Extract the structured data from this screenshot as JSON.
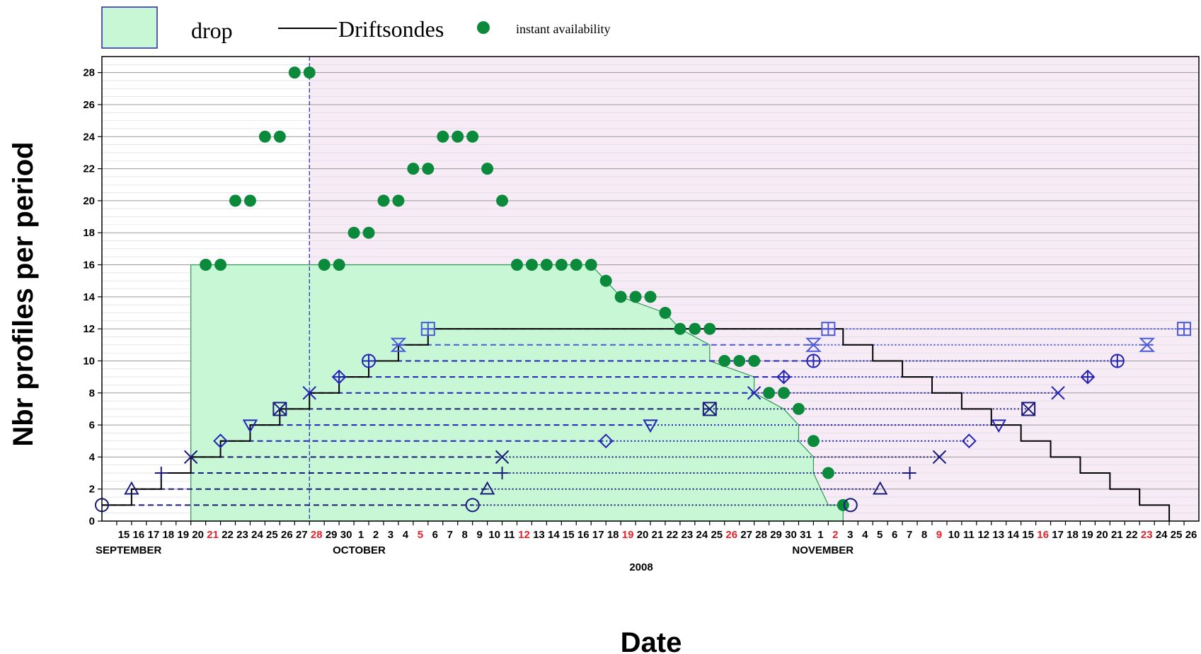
{
  "legend": {
    "drop": "drop",
    "driftsondes": "Driftsondes",
    "instant": "instant availability"
  },
  "axes": {
    "ylabel": "Nbr profiles per period",
    "xlabel": "Date",
    "year": "2008",
    "months": [
      "SEPTEMBER",
      "OCTOBER",
      "NOVEMBER"
    ]
  },
  "colors": {
    "drop_fill": "#c8f7d6",
    "drop_edge": "#2e9a5a",
    "dots": "#0b8a3c",
    "driftsonde": "#000000",
    "navy": "#1a1a7a",
    "blue": "#2323b5",
    "light_blue": "#4a5ad8",
    "weekend": "#e8202a",
    "shade": "#f7ecf6"
  },
  "chart_data": {
    "type": "line",
    "xlabel": "Date",
    "ylabel": "Nbr profiles per period",
    "ylim": [
      0,
      29
    ],
    "yticks": [
      0,
      2,
      4,
      6,
      8,
      10,
      12,
      14,
      16,
      18,
      20,
      22,
      24,
      26,
      28
    ],
    "xlim": [
      "2008-09-14",
      "2008-11-27"
    ],
    "x_ticks": [
      {
        "date": "2008-09-15",
        "label": "15",
        "red": false
      },
      {
        "date": "2008-09-16",
        "label": "16",
        "red": false
      },
      {
        "date": "2008-09-17",
        "label": "17",
        "red": false
      },
      {
        "date": "2008-09-18",
        "label": "18",
        "red": false
      },
      {
        "date": "2008-09-19",
        "label": "19",
        "red": false
      },
      {
        "date": "2008-09-20",
        "label": "20",
        "red": false
      },
      {
        "date": "2008-09-21",
        "label": "21",
        "red": true
      },
      {
        "date": "2008-09-22",
        "label": "22",
        "red": false
      },
      {
        "date": "2008-09-23",
        "label": "23",
        "red": false
      },
      {
        "date": "2008-09-24",
        "label": "24",
        "red": false
      },
      {
        "date": "2008-09-25",
        "label": "25",
        "red": false
      },
      {
        "date": "2008-09-26",
        "label": "26",
        "red": false
      },
      {
        "date": "2008-09-27",
        "label": "27",
        "red": false
      },
      {
        "date": "2008-09-28",
        "label": "28",
        "red": true
      },
      {
        "date": "2008-09-29",
        "label": "29",
        "red": false
      },
      {
        "date": "2008-09-30",
        "label": "30",
        "red": false
      },
      {
        "date": "2008-10-01",
        "label": "1",
        "red": false
      },
      {
        "date": "2008-10-02",
        "label": "2",
        "red": false
      },
      {
        "date": "2008-10-03",
        "label": "3",
        "red": false
      },
      {
        "date": "2008-10-04",
        "label": "4",
        "red": false
      },
      {
        "date": "2008-10-05",
        "label": "5",
        "red": true
      },
      {
        "date": "2008-10-06",
        "label": "6",
        "red": false
      },
      {
        "date": "2008-10-07",
        "label": "7",
        "red": false
      },
      {
        "date": "2008-10-08",
        "label": "8",
        "red": false
      },
      {
        "date": "2008-10-09",
        "label": "9",
        "red": false
      },
      {
        "date": "2008-10-10",
        "label": "10",
        "red": false
      },
      {
        "date": "2008-10-11",
        "label": "11",
        "red": false
      },
      {
        "date": "2008-10-12",
        "label": "12",
        "red": true
      },
      {
        "date": "2008-10-13",
        "label": "13",
        "red": false
      },
      {
        "date": "2008-10-14",
        "label": "14",
        "red": false
      },
      {
        "date": "2008-10-15",
        "label": "15",
        "red": false
      },
      {
        "date": "2008-10-16",
        "label": "16",
        "red": false
      },
      {
        "date": "2008-10-17",
        "label": "17",
        "red": false
      },
      {
        "date": "2008-10-18",
        "label": "18",
        "red": false
      },
      {
        "date": "2008-10-19",
        "label": "19",
        "red": true
      },
      {
        "date": "2008-10-20",
        "label": "20",
        "red": false
      },
      {
        "date": "2008-10-21",
        "label": "21",
        "red": false
      },
      {
        "date": "2008-10-22",
        "label": "22",
        "red": false
      },
      {
        "date": "2008-10-23",
        "label": "23",
        "red": false
      },
      {
        "date": "2008-10-24",
        "label": "24",
        "red": false
      },
      {
        "date": "2008-10-25",
        "label": "25",
        "red": false
      },
      {
        "date": "2008-10-26",
        "label": "26",
        "red": true
      },
      {
        "date": "2008-10-27",
        "label": "27",
        "red": false
      },
      {
        "date": "2008-10-28",
        "label": "28",
        "red": false
      },
      {
        "date": "2008-10-29",
        "label": "29",
        "red": false
      },
      {
        "date": "2008-10-30",
        "label": "30",
        "red": false
      },
      {
        "date": "2008-10-31",
        "label": "31",
        "red": false
      },
      {
        "date": "2008-11-01",
        "label": "1",
        "red": false
      },
      {
        "date": "2008-11-02",
        "label": "2",
        "red": true
      },
      {
        "date": "2008-11-03",
        "label": "3",
        "red": false
      },
      {
        "date": "2008-11-04",
        "label": "4",
        "red": false
      },
      {
        "date": "2008-11-05",
        "label": "5",
        "red": false
      },
      {
        "date": "2008-11-06",
        "label": "6",
        "red": false
      },
      {
        "date": "2008-11-07",
        "label": "7",
        "red": false
      },
      {
        "date": "2008-11-08",
        "label": "8",
        "red": false
      },
      {
        "date": "2008-11-09",
        "label": "9",
        "red": true
      },
      {
        "date": "2008-11-10",
        "label": "10",
        "red": false
      },
      {
        "date": "2008-11-11",
        "label": "11",
        "red": false
      },
      {
        "date": "2008-11-12",
        "label": "12",
        "red": false
      },
      {
        "date": "2008-11-13",
        "label": "13",
        "red": false
      },
      {
        "date": "2008-11-14",
        "label": "14",
        "red": false
      },
      {
        "date": "2008-11-15",
        "label": "15",
        "red": false
      },
      {
        "date": "2008-11-16",
        "label": "16",
        "red": true
      },
      {
        "date": "2008-11-17",
        "label": "17",
        "red": false
      },
      {
        "date": "2008-11-18",
        "label": "18",
        "red": false
      },
      {
        "date": "2008-11-19",
        "label": "19",
        "red": false
      },
      {
        "date": "2008-11-20",
        "label": "20",
        "red": false
      },
      {
        "date": "2008-11-21",
        "label": "21",
        "red": false
      },
      {
        "date": "2008-11-22",
        "label": "22",
        "red": false
      },
      {
        "date": "2008-11-23",
        "label": "23",
        "red": true
      },
      {
        "date": "2008-11-24",
        "label": "24",
        "red": false
      },
      {
        "date": "2008-11-25",
        "label": "25",
        "red": false
      },
      {
        "date": "2008-11-26",
        "label": "26",
        "red": false
      }
    ],
    "month_labels": [
      {
        "date": "2008-09-15",
        "label": "SEPTEMBER"
      },
      {
        "date": "2008-10-01",
        "label": "OCTOBER"
      },
      {
        "date": "2008-11-01",
        "label": "NOVEMBER"
      }
    ],
    "shaded_region": {
      "start": "2008-09-28",
      "end": "2008-11-27"
    },
    "vertical_line": "2008-09-28",
    "drop_area": [
      [
        "2008-09-20",
        0
      ],
      [
        "2008-09-20",
        16
      ],
      [
        "2008-10-17",
        16
      ],
      [
        "2008-10-18",
        15
      ],
      [
        "2008-10-19",
        14
      ],
      [
        "2008-10-22",
        13
      ],
      [
        "2008-10-23",
        12
      ],
      [
        "2008-10-25",
        11
      ],
      [
        "2008-10-25",
        10
      ],
      [
        "2008-10-28",
        9
      ],
      [
        "2008-10-28",
        8
      ],
      [
        "2008-10-30",
        7
      ],
      [
        "2008-10-31",
        6
      ],
      [
        "2008-10-31",
        5
      ],
      [
        "2008-11-01",
        4
      ],
      [
        "2008-11-01",
        3
      ],
      [
        "2008-11-02",
        1
      ],
      [
        "2008-11-03",
        1
      ],
      [
        "2008-11-03",
        0
      ]
    ],
    "driftsondes": [
      [
        "2008-09-14",
        1
      ],
      [
        "2008-09-16",
        1
      ],
      [
        "2008-09-16",
        2
      ],
      [
        "2008-09-18",
        2
      ],
      [
        "2008-09-18",
        3
      ],
      [
        "2008-09-20",
        3
      ],
      [
        "2008-09-20",
        4
      ],
      [
        "2008-09-22",
        4
      ],
      [
        "2008-09-22",
        5
      ],
      [
        "2008-09-24",
        5
      ],
      [
        "2008-09-24",
        6
      ],
      [
        "2008-09-26",
        6
      ],
      [
        "2008-09-26",
        7
      ],
      [
        "2008-09-28",
        7
      ],
      [
        "2008-09-28",
        8
      ],
      [
        "2008-09-30",
        8
      ],
      [
        "2008-09-30",
        9
      ],
      [
        "2008-10-02",
        9
      ],
      [
        "2008-10-02",
        10
      ],
      [
        "2008-10-04",
        10
      ],
      [
        "2008-10-04",
        11
      ],
      [
        "2008-10-06",
        11
      ],
      [
        "2008-10-06",
        12
      ],
      [
        "2008-11-03",
        12
      ],
      [
        "2008-11-03",
        11
      ],
      [
        "2008-11-05",
        11
      ],
      [
        "2008-11-05",
        10
      ],
      [
        "2008-11-07",
        10
      ],
      [
        "2008-11-07",
        9
      ],
      [
        "2008-11-09",
        9
      ],
      [
        "2008-11-09",
        8
      ],
      [
        "2008-11-11",
        8
      ],
      [
        "2008-11-11",
        7
      ],
      [
        "2008-11-13",
        7
      ],
      [
        "2008-11-13",
        6
      ],
      [
        "2008-11-15",
        6
      ],
      [
        "2008-11-15",
        5
      ],
      [
        "2008-11-17",
        5
      ],
      [
        "2008-11-17",
        4
      ],
      [
        "2008-11-19",
        4
      ],
      [
        "2008-11-19",
        3
      ],
      [
        "2008-11-21",
        3
      ],
      [
        "2008-11-21",
        2
      ],
      [
        "2008-11-23",
        2
      ],
      [
        "2008-11-23",
        1
      ],
      [
        "2008-11-25",
        1
      ],
      [
        "2008-11-25",
        0
      ]
    ],
    "instant_availability": [
      [
        "2008-09-21",
        16
      ],
      [
        "2008-09-22",
        16
      ],
      [
        "2008-09-23",
        20
      ],
      [
        "2008-09-24",
        20
      ],
      [
        "2008-09-25",
        24
      ],
      [
        "2008-09-26",
        24
      ],
      [
        "2008-09-27",
        28
      ],
      [
        "2008-09-28",
        28
      ],
      [
        "2008-09-29",
        16
      ],
      [
        "2008-09-30",
        16
      ],
      [
        "2008-10-01",
        18
      ],
      [
        "2008-10-02",
        18
      ],
      [
        "2008-10-03",
        20
      ],
      [
        "2008-10-04",
        20
      ],
      [
        "2008-10-05",
        22
      ],
      [
        "2008-10-06",
        22
      ],
      [
        "2008-10-07",
        24
      ],
      [
        "2008-10-08",
        24
      ],
      [
        "2008-10-09",
        24
      ],
      [
        "2008-10-10",
        22
      ],
      [
        "2008-10-11",
        20
      ],
      [
        "2008-10-12",
        16
      ],
      [
        "2008-10-13",
        16
      ],
      [
        "2008-10-14",
        16
      ],
      [
        "2008-10-15",
        16
      ],
      [
        "2008-10-16",
        16
      ],
      [
        "2008-10-17",
        16
      ],
      [
        "2008-10-18",
        15
      ],
      [
        "2008-10-19",
        14
      ],
      [
        "2008-10-20",
        14
      ],
      [
        "2008-10-21",
        14
      ],
      [
        "2008-10-22",
        13
      ],
      [
        "2008-10-23",
        12
      ],
      [
        "2008-10-24",
        12
      ],
      [
        "2008-10-25",
        12
      ],
      [
        "2008-10-26",
        10
      ],
      [
        "2008-10-27",
        10
      ],
      [
        "2008-10-28",
        10
      ],
      [
        "2008-10-29",
        8
      ],
      [
        "2008-10-30",
        8
      ],
      [
        "2008-10-31",
        7
      ],
      [
        "2008-11-01",
        5
      ],
      [
        "2008-11-02",
        3
      ],
      [
        "2008-11-03",
        1
      ]
    ],
    "balloons": [
      {
        "y": 1,
        "marker": "circle",
        "color": "navy",
        "start": "2008-09-14",
        "launch_date": "2008-10-09",
        "end": "2008-11-03.5"
      },
      {
        "y": 2,
        "marker": "triangle-up",
        "color": "navy",
        "start": "2008-09-16",
        "launch_date": "2008-10-10",
        "end": "2008-11-05.5"
      },
      {
        "y": 3,
        "marker": "plus",
        "color": "navy",
        "start": "2008-09-18",
        "launch_date": "2008-10-11",
        "end": "2008-11-07.5"
      },
      {
        "y": 4,
        "marker": "x",
        "color": "navy",
        "start": "2008-09-20",
        "launch_date": "2008-10-11",
        "end": "2008-11-09.5"
      },
      {
        "y": 5,
        "marker": "diamond",
        "color": "blue",
        "start": "2008-09-22",
        "launch_date": "2008-10-18",
        "end": "2008-11-11.5"
      },
      {
        "y": 6,
        "marker": "triangle-down",
        "color": "blue",
        "start": "2008-09-24",
        "launch_date": "2008-10-21",
        "end": "2008-11-13.5"
      },
      {
        "y": 7,
        "marker": "box-x",
        "color": "navy",
        "start": "2008-09-26",
        "launch_date": "2008-10-25",
        "end": "2008-11-15.5"
      },
      {
        "y": 8,
        "marker": "x",
        "color": "blue",
        "start": "2008-09-28",
        "launch_date": "2008-10-28",
        "end": "2008-11-17.5"
      },
      {
        "y": 9,
        "marker": "diamond-plus",
        "color": "blue",
        "start": "2008-09-30",
        "launch_date": "2008-10-30",
        "end": "2008-11-19.5"
      },
      {
        "y": 10,
        "marker": "circle-plus",
        "color": "blue",
        "start": "2008-10-02",
        "launch_date": "2008-11-01",
        "end": "2008-11-21.5"
      },
      {
        "y": 11,
        "marker": "hourglass",
        "color": "light_blue",
        "start": "2008-10-04",
        "launch_date": "2008-11-01",
        "end": "2008-11-23.5"
      },
      {
        "y": 12,
        "marker": "box-plus",
        "color": "light_blue",
        "start": "2008-10-06",
        "launch_date": "2008-11-02",
        "end": "2008-11-26"
      }
    ]
  }
}
